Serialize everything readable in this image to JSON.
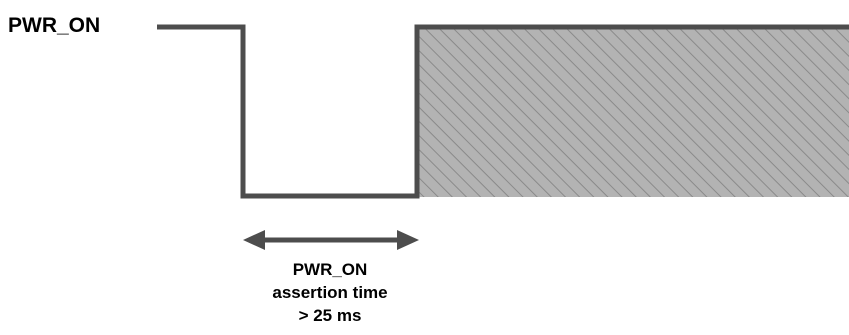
{
  "signal": {
    "name": "PWR_ON"
  },
  "timing": {
    "line1": "PWR_ON",
    "line2": "assertion time",
    "line3": "> 25 ms"
  },
  "colors": {
    "waveform": "#4d4d4d",
    "hatch_fill": "#b3b3b3",
    "hatch_lines": "#8a8a8a",
    "text": "#000000"
  }
}
